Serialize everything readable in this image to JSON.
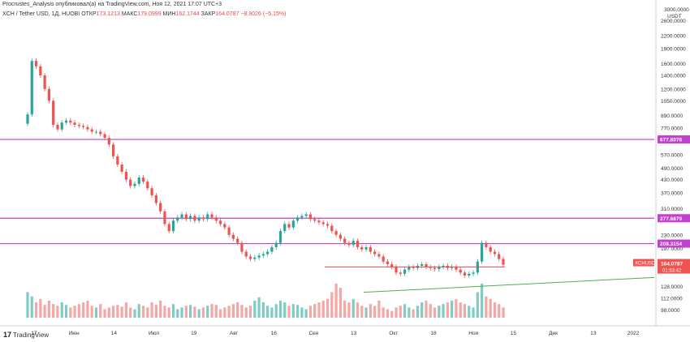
{
  "header": {
    "text": "Procrustes_Analysis опубликовал(а) на TradingView.com, Ноя 12, 2021 17:07 UTC+3"
  },
  "ohlc": {
    "symbol": "XCH / Tether USD, 1Д, HUOBI",
    "o_label": "ОТКР",
    "o": "173.1213",
    "h_label": "МАКС",
    "h": "179.0999",
    "l_label": "МИН",
    "l": "162.1744",
    "c_label": "ЗАКР",
    "c": "164.0787",
    "chg": "−8.9026 (−5.15%)"
  },
  "branding": {
    "text": "TradingView",
    "mark": "17"
  },
  "colors": {
    "up": "#26a69a",
    "down": "#ef5350",
    "level": "#c23fd0",
    "support": "#e04a4a",
    "trend": "#4caf50"
  },
  "chart_data": {
    "type": "candlestick",
    "scale": "log",
    "ylim": [
      90,
      3000
    ],
    "currency": "USDT",
    "y_ticks": [
      "2600.0000",
      "2200.0000",
      "1900.0000",
      "1600.0000",
      "1400.0000",
      "1200.0000",
      "1050.0000",
      "890.0000",
      "770.0000",
      "570.0000",
      "490.0000",
      "430.0000",
      "370.0000",
      "310.0000",
      "230.0000",
      "197.0000",
      "172.0000",
      "128.0000",
      "112.0000",
      "98.0000"
    ],
    "y_tick_values": [
      2600,
      2200,
      1900,
      1600,
      1400,
      1200,
      1050,
      890,
      770,
      570,
      490,
      430,
      370,
      310,
      230,
      197,
      172,
      128,
      112,
      98
    ],
    "top_tick": "3000.0000",
    "x_ticks": [
      "17",
      "Июн",
      "14",
      "Июл",
      "19",
      "Авг",
      "16",
      "Сен",
      "13",
      "Окт",
      "18",
      "Ноя",
      "15",
      "Дек",
      "13",
      "2022"
    ],
    "levels": [
      {
        "label": "677.8076",
        "value": 677.8076
      },
      {
        "label": "277.6879",
        "value": 277.6879
      },
      {
        "label": "208.3154",
        "value": 208.3154
      }
    ],
    "support": 160,
    "last": {
      "symbol": "XCHUSDT",
      "value": "164.0787",
      "countdown": "01:53:42"
    },
    "trendline": {
      "from_value": 120,
      "to_value": 142
    },
    "closes": [
      900,
      1650,
      1550,
      1400,
      1200,
      1050,
      800,
      760,
      820,
      840,
      820,
      800,
      790,
      780,
      760,
      740,
      740,
      720,
      690,
      640,
      560,
      510,
      470,
      430,
      400,
      410,
      440,
      420,
      390,
      360,
      330,
      300,
      260,
      240,
      270,
      280,
      290,
      275,
      285,
      270,
      280,
      275,
      290,
      280,
      270,
      260,
      250,
      230,
      220,
      210,
      190,
      180,
      175,
      178,
      182,
      185,
      190,
      200,
      210,
      240,
      260,
      250,
      270,
      280,
      285,
      290,
      275,
      270,
      265,
      260,
      255,
      240,
      230,
      220,
      210,
      205,
      215,
      200,
      195,
      200,
      190,
      185,
      180,
      170,
      165,
      160,
      150,
      148,
      155,
      160,
      158,
      162,
      165,
      160,
      158,
      156,
      160,
      162,
      158,
      160,
      155,
      150,
      145,
      148,
      150,
      170,
      210,
      200,
      190,
      185,
      175,
      164
    ],
    "volumes": [
      30,
      25,
      18,
      22,
      15,
      20,
      16,
      14,
      18,
      15,
      12,
      14,
      16,
      18,
      20,
      14,
      12,
      16,
      10,
      12,
      14,
      15,
      13,
      18,
      12,
      10,
      16,
      14,
      12,
      18,
      15,
      20,
      14,
      12,
      16,
      10,
      12,
      14,
      15,
      13,
      10,
      12,
      14,
      16,
      15,
      10,
      12,
      14,
      16,
      18,
      15,
      12,
      14,
      20,
      24,
      18,
      14,
      12,
      16,
      20,
      18,
      14,
      16,
      15,
      12,
      10,
      14,
      16,
      18,
      20,
      22,
      30,
      40,
      35,
      20,
      18,
      22,
      18,
      14,
      12,
      16,
      14,
      20,
      12,
      10,
      8,
      12,
      14,
      16,
      12,
      10,
      14,
      18,
      20,
      16,
      12,
      14,
      16,
      18,
      20,
      22,
      18,
      16,
      14,
      12,
      30,
      40,
      25,
      22,
      18,
      16,
      12
    ]
  }
}
